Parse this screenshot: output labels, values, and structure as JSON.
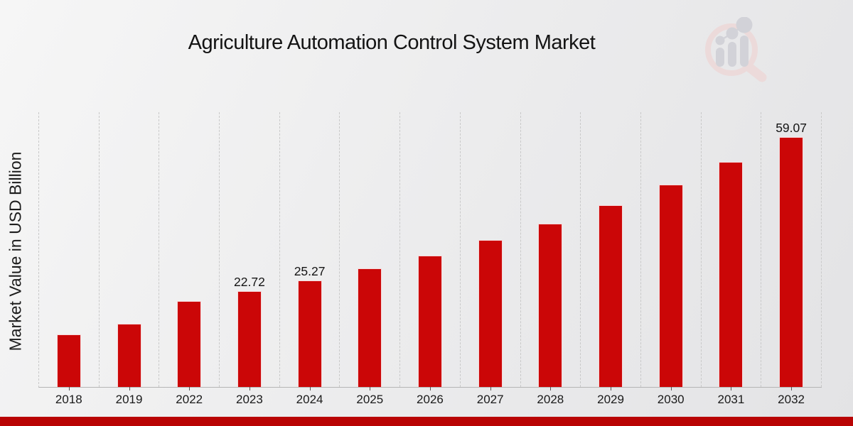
{
  "header": {
    "title": "Agriculture Automation Control System Market",
    "logo": "market-research-future-magnifier-logo"
  },
  "chart_data": {
    "type": "bar",
    "title": "Agriculture Automation Control System Market",
    "xlabel": "",
    "ylabel": "Market Value in USD Billion",
    "categories": [
      "2018",
      "2019",
      "2022",
      "2023",
      "2024",
      "2025",
      "2026",
      "2027",
      "2028",
      "2029",
      "2030",
      "2031",
      "2032"
    ],
    "values": [
      12.5,
      14.9,
      20.4,
      22.72,
      25.27,
      28.0,
      31.1,
      34.8,
      38.7,
      43.0,
      47.9,
      53.2,
      59.07
    ],
    "value_labels": [
      "",
      "",
      "",
      "22.72",
      "25.27",
      "",
      "",
      "",
      "",
      "",
      "",
      "",
      "59.07"
    ],
    "ylim": [
      0,
      65
    ],
    "grid": "vertical-dashed",
    "legend": "none",
    "bar_color": "#cb0607",
    "accent_strip_color": "#b90404",
    "units": "USD Billion"
  }
}
